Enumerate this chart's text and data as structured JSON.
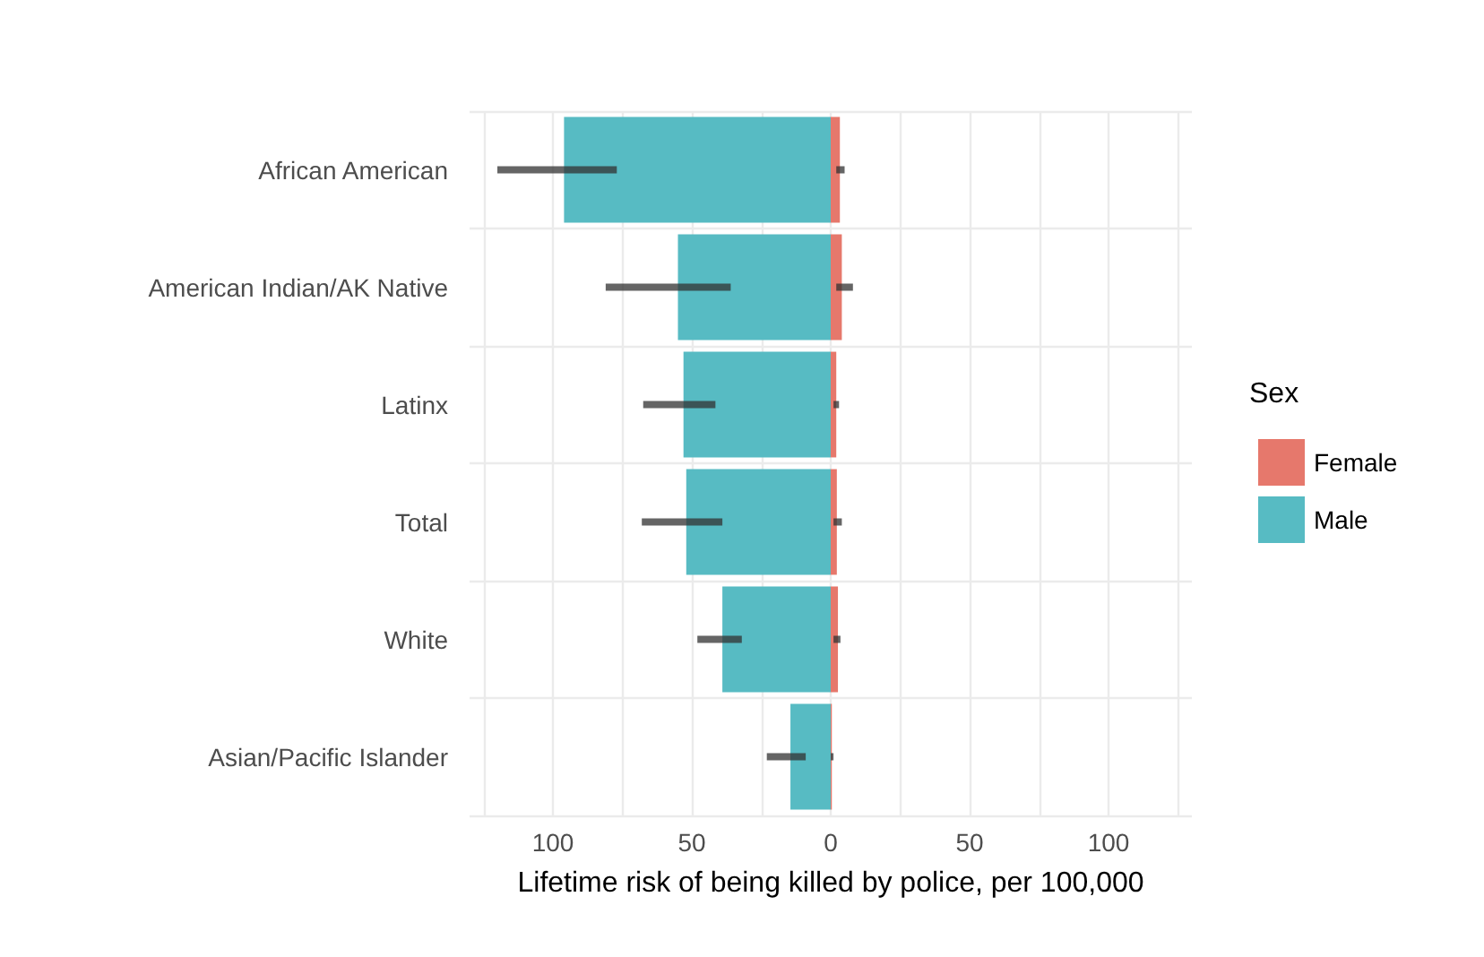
{
  "chart_data": {
    "type": "bar",
    "orientation": "horizontal",
    "xlabel": "Lifetime risk of being killed by police, per 100,000",
    "legend_title": "Sex",
    "legend": "right",
    "grid": true,
    "stacked": true,
    "categories": [
      "African American",
      "American Indian/AK Native",
      "Latinx",
      "Total",
      "White",
      "Asian/Pacific Islander"
    ],
    "xlim": [
      -130,
      130
    ],
    "xticks": [
      {
        "value": -125,
        "label": null
      },
      {
        "value": -100,
        "label": "100"
      },
      {
        "value": -75,
        "label": null
      },
      {
        "value": -50,
        "label": "50"
      },
      {
        "value": -25,
        "label": null
      },
      0,
      {
        "value": 25,
        "label": null
      },
      50,
      {
        "value": 75,
        "label": null
      },
      100,
      {
        "value": 125,
        "label": null
      }
    ],
    "series": [
      {
        "name": "Female",
        "color": "#e6786c",
        "values": [
          3.3,
          4,
          2,
          2.2,
          2.6,
          0.4
        ],
        "errors": [
          [
            2,
            5
          ],
          [
            2,
            8
          ],
          [
            1,
            3
          ],
          [
            1,
            4
          ],
          [
            1,
            3.5
          ],
          [
            0,
            1
          ]
        ]
      },
      {
        "name": "Male",
        "color": "#57bbc3",
        "values": [
          -96,
          -55,
          -53,
          -52,
          -39,
          -14.5
        ],
        "errors": [
          [
            -120,
            -77
          ],
          [
            -81,
            -36
          ],
          [
            -67.5,
            -41.5
          ],
          [
            -68,
            -39
          ],
          [
            -48,
            -32
          ],
          [
            -23,
            -9
          ]
        ]
      }
    ]
  }
}
